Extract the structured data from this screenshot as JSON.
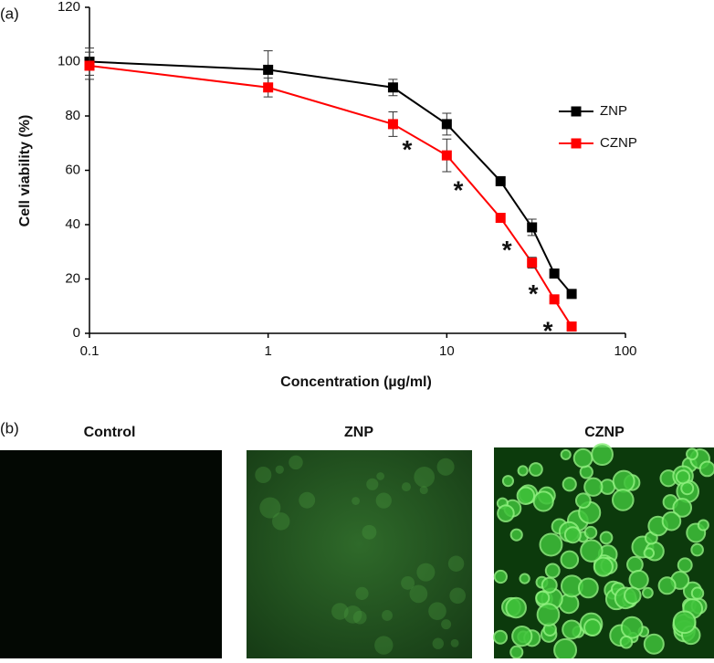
{
  "chart_data": {
    "type": "line",
    "panel_label": "(a)",
    "xlabel": "Concentration (µg/ml)",
    "ylabel": "Cell viability (%)",
    "x": [
      0.1,
      1,
      5,
      10,
      20,
      30,
      40,
      50
    ],
    "xlim": [
      0.1,
      100
    ],
    "xticks": [
      0.1,
      1,
      10,
      100
    ],
    "xscale": "log",
    "ylim": [
      0,
      120
    ],
    "yticks": [
      0,
      20,
      40,
      60,
      80,
      100,
      120
    ],
    "legend": "right",
    "series": [
      {
        "name": "ZNP",
        "color": "#000000",
        "values": [
          100,
          97,
          90.5,
          77,
          56,
          39,
          22,
          14.5
        ],
        "errors": [
          5,
          7,
          3,
          4,
          1.5,
          3,
          1,
          1
        ]
      },
      {
        "name": "CZNP",
        "color": "#ff0000",
        "values": [
          98.5,
          90.5,
          77,
          65.5,
          42.5,
          26,
          12.5,
          2.5
        ],
        "errors": [
          5,
          3.5,
          4.5,
          6,
          1.5,
          2,
          0.5,
          0.5
        ]
      }
    ],
    "annotations": [
      {
        "text": "*",
        "x": 6,
        "y": 69
      },
      {
        "text": "*",
        "x": 11.6,
        "y": 54
      },
      {
        "text": "*",
        "x": 21.7,
        "y": 32
      },
      {
        "text": "*",
        "x": 30.5,
        "y": 16
      },
      {
        "text": "*",
        "x": 36.8,
        "y": 2.4
      }
    ]
  },
  "images": {
    "panel_label": "(b)",
    "titles": [
      "Control",
      "ZNP",
      "CZNP"
    ]
  }
}
